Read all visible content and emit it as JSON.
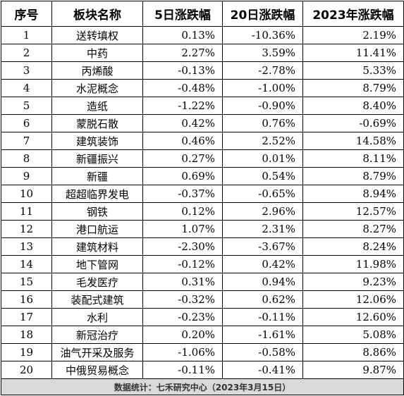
{
  "columns": [
    "序号",
    "板块名称",
    "5日涨跌幅",
    "20日涨跌幅",
    "2023年涨跌幅"
  ],
  "rows": [
    {
      "no": "1",
      "name": "送转填权",
      "d5": "0.13%",
      "d20": "-10.36%",
      "y2023": "2.19%"
    },
    {
      "no": "2",
      "name": "中药",
      "d5": "2.27%",
      "d20": "3.59%",
      "y2023": "11.41%"
    },
    {
      "no": "3",
      "name": "丙烯酸",
      "d5": "-0.13%",
      "d20": "-2.78%",
      "y2023": "5.33%"
    },
    {
      "no": "4",
      "name": "水泥概念",
      "d5": "-0.48%",
      "d20": "-1.00%",
      "y2023": "8.79%"
    },
    {
      "no": "5",
      "name": "造纸",
      "d5": "-1.22%",
      "d20": "-0.90%",
      "y2023": "8.40%"
    },
    {
      "no": "6",
      "name": "蒙脱石散",
      "d5": "0.42%",
      "d20": "0.76%",
      "y2023": "-0.69%"
    },
    {
      "no": "7",
      "name": "建筑装饰",
      "d5": "0.46%",
      "d20": "2.52%",
      "y2023": "14.58%"
    },
    {
      "no": "8",
      "name": "新疆振兴",
      "d5": "0.27%",
      "d20": "0.01%",
      "y2023": "8.11%"
    },
    {
      "no": "9",
      "name": "新疆",
      "d5": "0.69%",
      "d20": "0.54%",
      "y2023": "8.79%"
    },
    {
      "no": "10",
      "name": "超超临界发电",
      "d5": "-0.37%",
      "d20": "-0.65%",
      "y2023": "8.94%"
    },
    {
      "no": "11",
      "name": "钢铁",
      "d5": "0.12%",
      "d20": "2.96%",
      "y2023": "12.57%"
    },
    {
      "no": "12",
      "name": "港口航运",
      "d5": "1.07%",
      "d20": "2.31%",
      "y2023": "8.27%"
    },
    {
      "no": "13",
      "name": "建筑材料",
      "d5": "-2.30%",
      "d20": "-3.67%",
      "y2023": "8.24%"
    },
    {
      "no": "14",
      "name": "地下管网",
      "d5": "-0.12%",
      "d20": "0.42%",
      "y2023": "11.98%"
    },
    {
      "no": "15",
      "name": "毛发医疗",
      "d5": "0.31%",
      "d20": "0.94%",
      "y2023": "9.23%"
    },
    {
      "no": "16",
      "name": "装配式建筑",
      "d5": "-0.32%",
      "d20": "0.62%",
      "y2023": "12.06%"
    },
    {
      "no": "17",
      "name": "水利",
      "d5": "-0.23%",
      "d20": "-0.11%",
      "y2023": "12.60%"
    },
    {
      "no": "18",
      "name": "新冠治疗",
      "d5": "0.20%",
      "d20": "-1.61%",
      "y2023": "5.08%"
    },
    {
      "no": "19",
      "name": "油气开采及服务",
      "d5": "-1.06%",
      "d20": "-0.58%",
      "y2023": "8.86%"
    },
    {
      "no": "20",
      "name": "中俄贸易概念",
      "d5": "-0.11%",
      "d20": "-0.41%",
      "y2023": "9.87%"
    }
  ],
  "footer": "数据统计：七禾研究中心（2023年3月15日）"
}
